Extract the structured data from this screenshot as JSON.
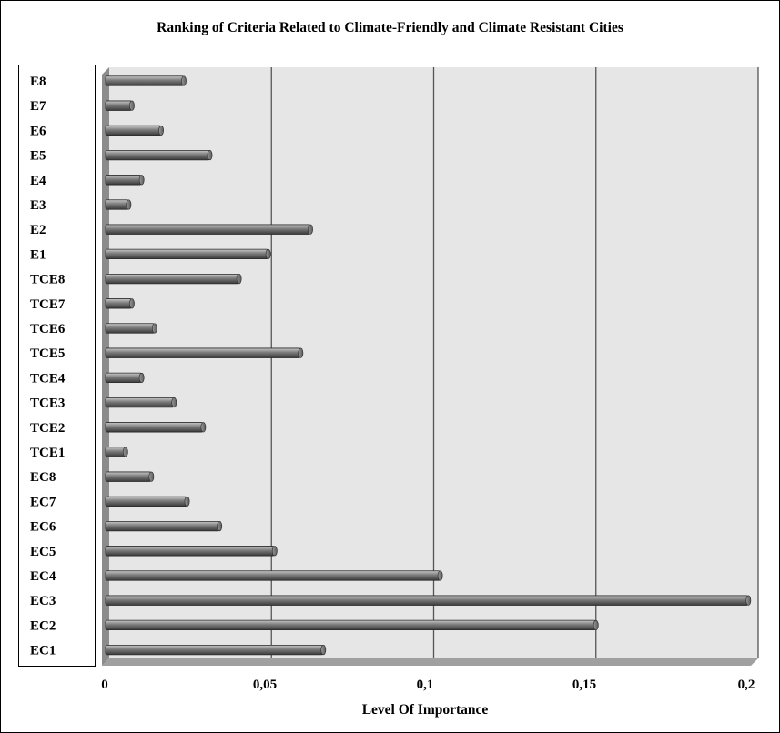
{
  "chart_data": {
    "type": "bar",
    "orientation": "horizontal",
    "title": "Ranking of Criteria Related to Climate-Friendly and Climate Resistant Cities",
    "xlabel": "Level Of Importance",
    "ylabel": "",
    "xlim": [
      0,
      0.2
    ],
    "xticks": [
      "0",
      "0,05",
      "0,1",
      "0,15",
      "0,2"
    ],
    "grid": "vertical",
    "categories": [
      "E8",
      "E7",
      "E6",
      "E5",
      "E4",
      "E3",
      "E2",
      "E1",
      "TCE8",
      "TCE7",
      "TCE6",
      "TCE5",
      "TCE4",
      "TCE3",
      "TCE2",
      "TCE1",
      "EC8",
      "EC7",
      "EC6",
      "EC5",
      "EC4",
      "EC3",
      "EC2",
      "EC1"
    ],
    "values": [
      0.023,
      0.007,
      0.016,
      0.031,
      0.01,
      0.006,
      0.062,
      0.049,
      0.04,
      0.007,
      0.014,
      0.059,
      0.01,
      0.02,
      0.029,
      0.005,
      0.013,
      0.024,
      0.034,
      0.051,
      0.102,
      0.197,
      0.15,
      0.066
    ],
    "colors": {
      "plot_bg": "#e6e6e6",
      "bar": "#7a7a7a",
      "bar_highlight": "#c8c8c8",
      "bar_shadow": "#3a3a3a",
      "grid": "#555555",
      "wall": "#8c8c8c",
      "floor": "#a0a0a0"
    }
  }
}
